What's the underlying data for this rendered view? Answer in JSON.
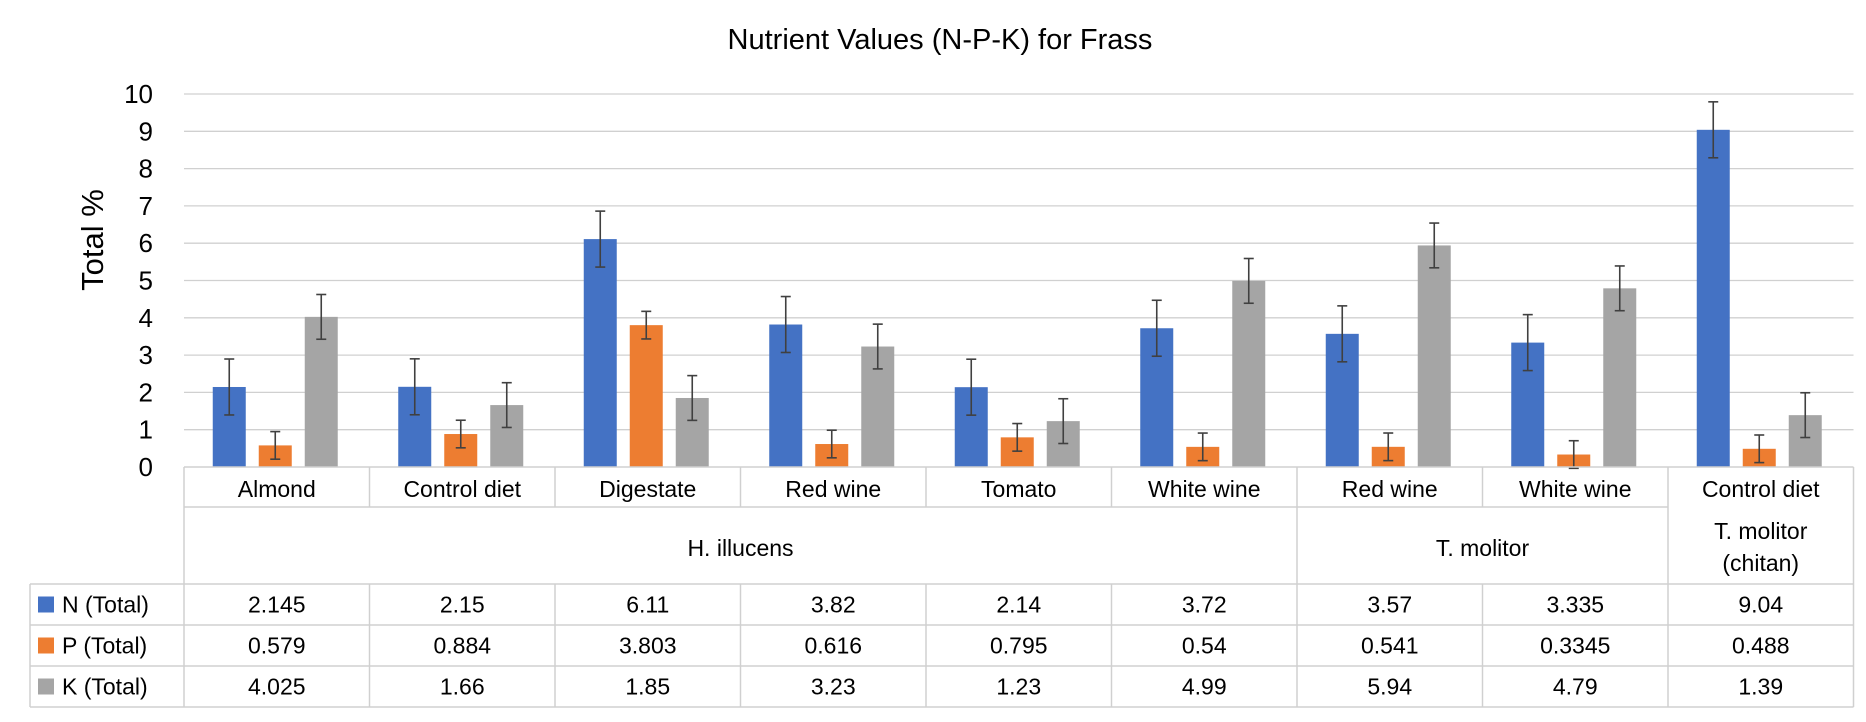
{
  "chart_data": {
    "type": "bar",
    "title": "Nutrient Values (N-P-K) for Frass",
    "ylabel": "Total %",
    "xlabel": "",
    "ylim": [
      0,
      10
    ],
    "yticks": [
      "0",
      "1",
      "2",
      "3",
      "4",
      "5",
      "6",
      "7",
      "8",
      "9",
      "10"
    ],
    "grid": true,
    "error_bars": true,
    "categories": [
      "Almond",
      "Control diet",
      "Digestate",
      "Red wine",
      "Tomato",
      "White wine",
      "Red wine",
      "White wine",
      "Control diet"
    ],
    "groups": [
      {
        "label": "H. illucens",
        "span": 6
      },
      {
        "label": "T. molitor",
        "span": 2
      },
      {
        "label": "T. molitor (chitan)",
        "span": 1
      }
    ],
    "series": [
      {
        "name": "N (Total)",
        "color": "#4472C4",
        "values": [
          2.145,
          2.15,
          6.11,
          3.82,
          2.14,
          3.72,
          3.57,
          3.335,
          9.04
        ],
        "labels": [
          "2.145",
          "2.15",
          "6.11",
          "3.82",
          "2.14",
          "3.72",
          "3.57",
          "3.335",
          "9.04"
        ],
        "errors": [
          0.75,
          0.75,
          0.75,
          0.75,
          0.75,
          0.75,
          0.75,
          0.75,
          0.75
        ]
      },
      {
        "name": "P (Total)",
        "color": "#ED7D31",
        "values": [
          0.579,
          0.884,
          3.803,
          0.616,
          0.795,
          0.54,
          0.541,
          0.3345,
          0.488
        ],
        "labels": [
          "0.579",
          "0.884",
          "3.803",
          "0.616",
          "0.795",
          "0.54",
          "0.541",
          "0.3345",
          "0.488"
        ],
        "errors": [
          0.37,
          0.37,
          0.37,
          0.37,
          0.37,
          0.37,
          0.37,
          0.37,
          0.37
        ]
      },
      {
        "name": "K (Total)",
        "color": "#A5A5A5",
        "values": [
          4.025,
          1.66,
          1.85,
          3.23,
          1.23,
          4.99,
          5.94,
          4.79,
          1.39
        ],
        "labels": [
          "4.025",
          "1.66",
          "1.85",
          "3.23",
          "1.23",
          "4.99",
          "5.94",
          "4.79",
          "1.39"
        ],
        "errors": [
          0.6,
          0.6,
          0.6,
          0.6,
          0.6,
          0.6,
          0.6,
          0.6,
          0.6
        ]
      }
    ]
  }
}
